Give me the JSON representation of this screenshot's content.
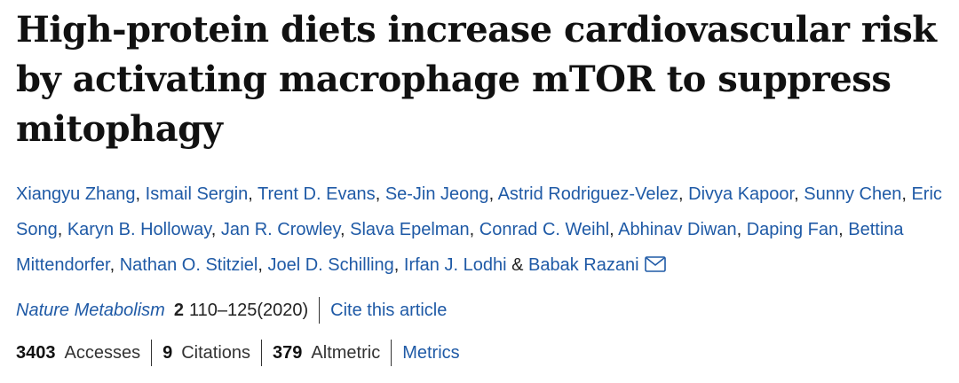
{
  "article": {
    "title": "High-protein diets increase cardiovascular risk by activating macrophage mTOR to suppress mitophagy",
    "authors": [
      "Xiangyu Zhang",
      "Ismail Sergin",
      "Trent D. Evans",
      "Se-Jin Jeong",
      "Astrid Rodriguez-Velez",
      "Divya Kapoor",
      "Sunny Chen",
      "Eric Song",
      "Karyn B. Holloway",
      "Jan R. Crowley",
      "Slava Epelman",
      "Conrad C. Weihl",
      "Abhinav Diwan",
      "Daping Fan",
      "Bettina Mittendorfer",
      "Nathan O. Stitziel",
      "Joel D. Schilling",
      "Irfan J. Lodhi",
      "Babak Razani"
    ],
    "author_separator": ", ",
    "last_author_separator": " & ",
    "contact_icon": "envelope-icon"
  },
  "citation": {
    "journal": "Nature Metabolism",
    "volume": "2",
    "pages_year": "110–125(2020)",
    "cite_label": "Cite this article"
  },
  "metrics": {
    "accesses_count": "3403",
    "accesses_label": "Accesses",
    "citations_count": "9",
    "citations_label": "Citations",
    "altmetric_count": "379",
    "altmetric_label": "Altmetric",
    "metrics_link": "Metrics"
  },
  "colors": {
    "link": "#1f5aa6",
    "text": "#222222",
    "title": "#111111"
  }
}
